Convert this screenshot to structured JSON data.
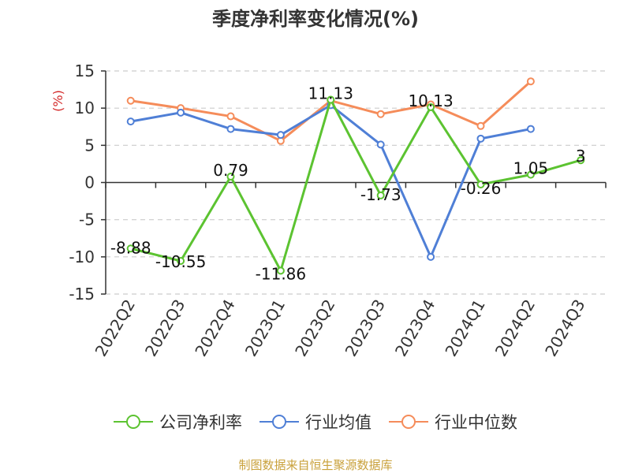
{
  "title": "季度净利率变化情况(%)",
  "source": "制图数据来自恒生聚源数据库",
  "colors": {
    "company": "#5cc331",
    "industry_avg": "#4f7fd6",
    "industry_median": "#f58c5a",
    "ylabel": "#d42a2a",
    "source": "#c9a13b"
  },
  "chart_data": {
    "type": "line",
    "title": "季度净利率变化情况(%)",
    "ylabel": "(%)",
    "xlabel": "",
    "categories": [
      "2022Q2",
      "2022Q3",
      "2022Q4",
      "2023Q1",
      "2023Q2",
      "2023Q3",
      "2023Q4",
      "2024Q1",
      "2024Q2",
      "2024Q3"
    ],
    "ylim": [
      -15,
      15
    ],
    "yticks": [
      15,
      10,
      5,
      0,
      -5,
      -10,
      -15
    ],
    "grid": true,
    "legend_position": "bottom",
    "series": [
      {
        "name": "公司净利率",
        "values": [
          -8.88,
          -10.55,
          0.79,
          -11.86,
          11.13,
          -1.73,
          10.13,
          -0.26,
          1.05,
          3
        ],
        "labels": [
          "-8.88",
          "-10.55",
          "0.79",
          "-11.86",
          "11.13",
          "-1.73",
          "10.13",
          "-0.26",
          "1.05",
          "3"
        ]
      },
      {
        "name": "行业均值",
        "values": [
          8.2,
          9.4,
          7.2,
          6.4,
          10.4,
          5.1,
          -10.0,
          5.9,
          7.2,
          null
        ]
      },
      {
        "name": "行业中位数",
        "values": [
          11.0,
          10.0,
          8.9,
          5.6,
          11.0,
          9.2,
          10.5,
          7.6,
          13.6,
          null
        ]
      }
    ]
  }
}
